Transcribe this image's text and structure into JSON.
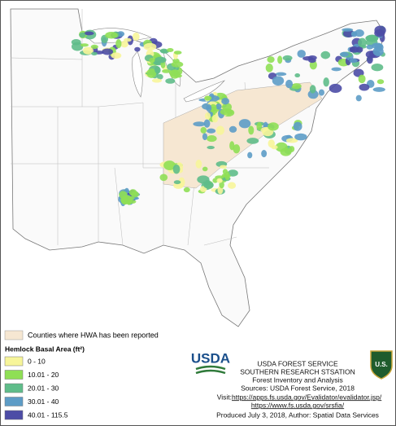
{
  "legend": {
    "hwa_label": "Counties where HWA has been reported",
    "hwa_color": "#f6e7d2",
    "title": "Hemlock Basal Area (ft²)",
    "classes": [
      {
        "label": "0 - 10",
        "color": "#f7f59a"
      },
      {
        "label": "10.01 - 20",
        "color": "#8fdf55"
      },
      {
        "label": "20.01 - 30",
        "color": "#5fbd8a"
      },
      {
        "label": "30.01 - 40",
        "color": "#5d9cc6"
      },
      {
        "label": "40.01 - 115.5",
        "color": "#4d4ca6"
      }
    ]
  },
  "logos": {
    "usda": "USDA",
    "shield": "U.S."
  },
  "credits": {
    "agency": "USDA FOREST SERVICE",
    "station": "SOUTHERN RESEARCH STSATION",
    "program": "Forest Inventory and Analysis",
    "sources": "Sources: USDA Forest Service, 2018",
    "visit": "Visit: ",
    "link1": "https://apps.fs.usda.gov/Evalidator/evalidator.jsp/",
    "link2": "https://www.fs.usda.gov/srsfia/",
    "produced": "Produced July 3, 2018, Author: Spatial Data Services"
  }
}
